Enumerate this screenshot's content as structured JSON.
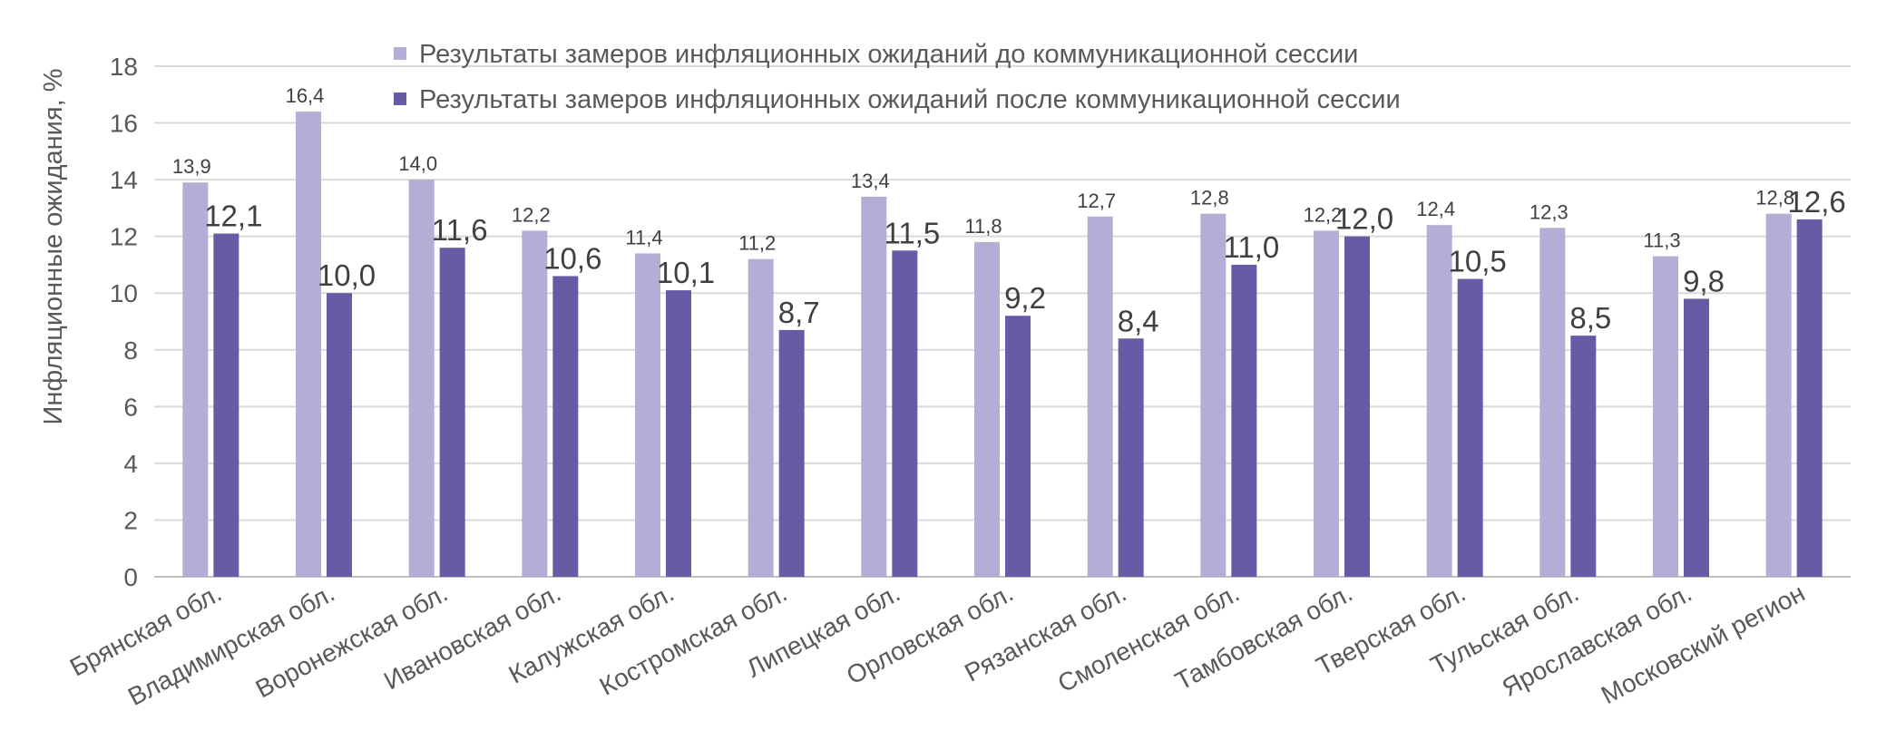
{
  "chart_data": {
    "type": "bar",
    "ylabel": "Инфляционные ожидания, %",
    "ylim": [
      0,
      18
    ],
    "yticks": [
      "0",
      "2",
      "4",
      "6",
      "8",
      "10",
      "12",
      "14",
      "16",
      "18"
    ],
    "grid": true,
    "legend_position": "top",
    "categories": [
      "Брянская обл.",
      "Владимирская обл.",
      "Воронежская обл.",
      "Ивановская обл.",
      "Калужская обл.",
      "Костромская обл.",
      "Липецкая обл.",
      "Орловская обл.",
      "Рязанская обл.",
      "Смоленская обл.",
      "Тамбовская обл.",
      "Тверская обл.",
      "Тульская обл.",
      "Ярославская обл.",
      "Московский регион"
    ],
    "series": [
      {
        "name": "Результаты замеров инфляционных ожиданий до коммуникационной сессии",
        "color": "#b3aed6",
        "values": [
          13.9,
          16.4,
          14.0,
          12.2,
          11.4,
          11.2,
          13.4,
          11.8,
          12.7,
          12.8,
          12.2,
          12.4,
          12.3,
          11.3,
          12.8
        ],
        "labels": [
          "13,9",
          "16,4",
          "14,0",
          "12,2",
          "11,4",
          "11,2",
          "13,4",
          "11,8",
          "12,7",
          "12,8",
          "12,2",
          "12,4",
          "12,3",
          "11,3",
          "12,8"
        ]
      },
      {
        "name": "Результаты замеров инфляционных ожиданий после коммуникационной сессии",
        "color": "#665ca6",
        "values": [
          12.1,
          10.0,
          11.6,
          10.6,
          10.1,
          8.7,
          11.5,
          9.2,
          8.4,
          11.0,
          12.0,
          10.5,
          8.5,
          9.8,
          12.6
        ],
        "labels": [
          "12,1",
          "10,0",
          "11,6",
          "10,6",
          "10,1",
          "8,7",
          "11,5",
          "9,2",
          "8,4",
          "11,0",
          "12,0",
          "10,5",
          "8,5",
          "9,8",
          "12,6"
        ]
      }
    ]
  }
}
